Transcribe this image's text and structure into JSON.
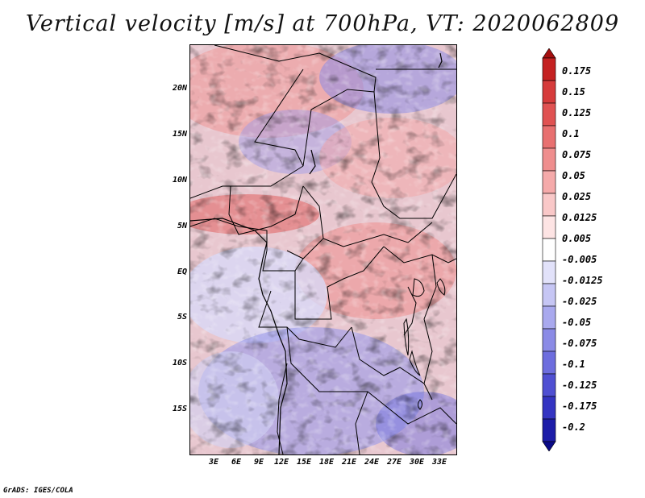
{
  "title": "Vertical velocity [m/s] at 700hPa, VT: 2020062809",
  "latitude_ticks": [
    "20N",
    "15N",
    "10N",
    "5N",
    "EQ",
    "5S",
    "10S",
    "15S"
  ],
  "longitude_ticks": [
    "3E",
    "6E",
    "9E",
    "12E",
    "15E",
    "18E",
    "21E",
    "24E",
    "27E",
    "30E",
    "33E"
  ],
  "colorbar": {
    "levels": [
      "0.175",
      "0.15",
      "0.125",
      "0.1",
      "0.075",
      "0.05",
      "0.025",
      "0.0125",
      "0.005",
      "-0.005",
      "-0.0125",
      "-0.025",
      "-0.05",
      "-0.075",
      "-0.1",
      "-0.125",
      "-0.175",
      "-0.2"
    ],
    "colors": [
      "#a50f0f",
      "#c42121",
      "#d63b3b",
      "#e05252",
      "#e87070",
      "#ef8e8e",
      "#f5aaaa",
      "#f9c8c8",
      "#fde4e4",
      "#ffffff",
      "#e2e2fa",
      "#c6c6f4",
      "#a9a9ee",
      "#8b8be6",
      "#6d6dde",
      "#4f4fd2",
      "#3434c2",
      "#1c1ca8",
      "#0a0a88"
    ]
  },
  "credit": "GrADS: IGES/COLA"
}
